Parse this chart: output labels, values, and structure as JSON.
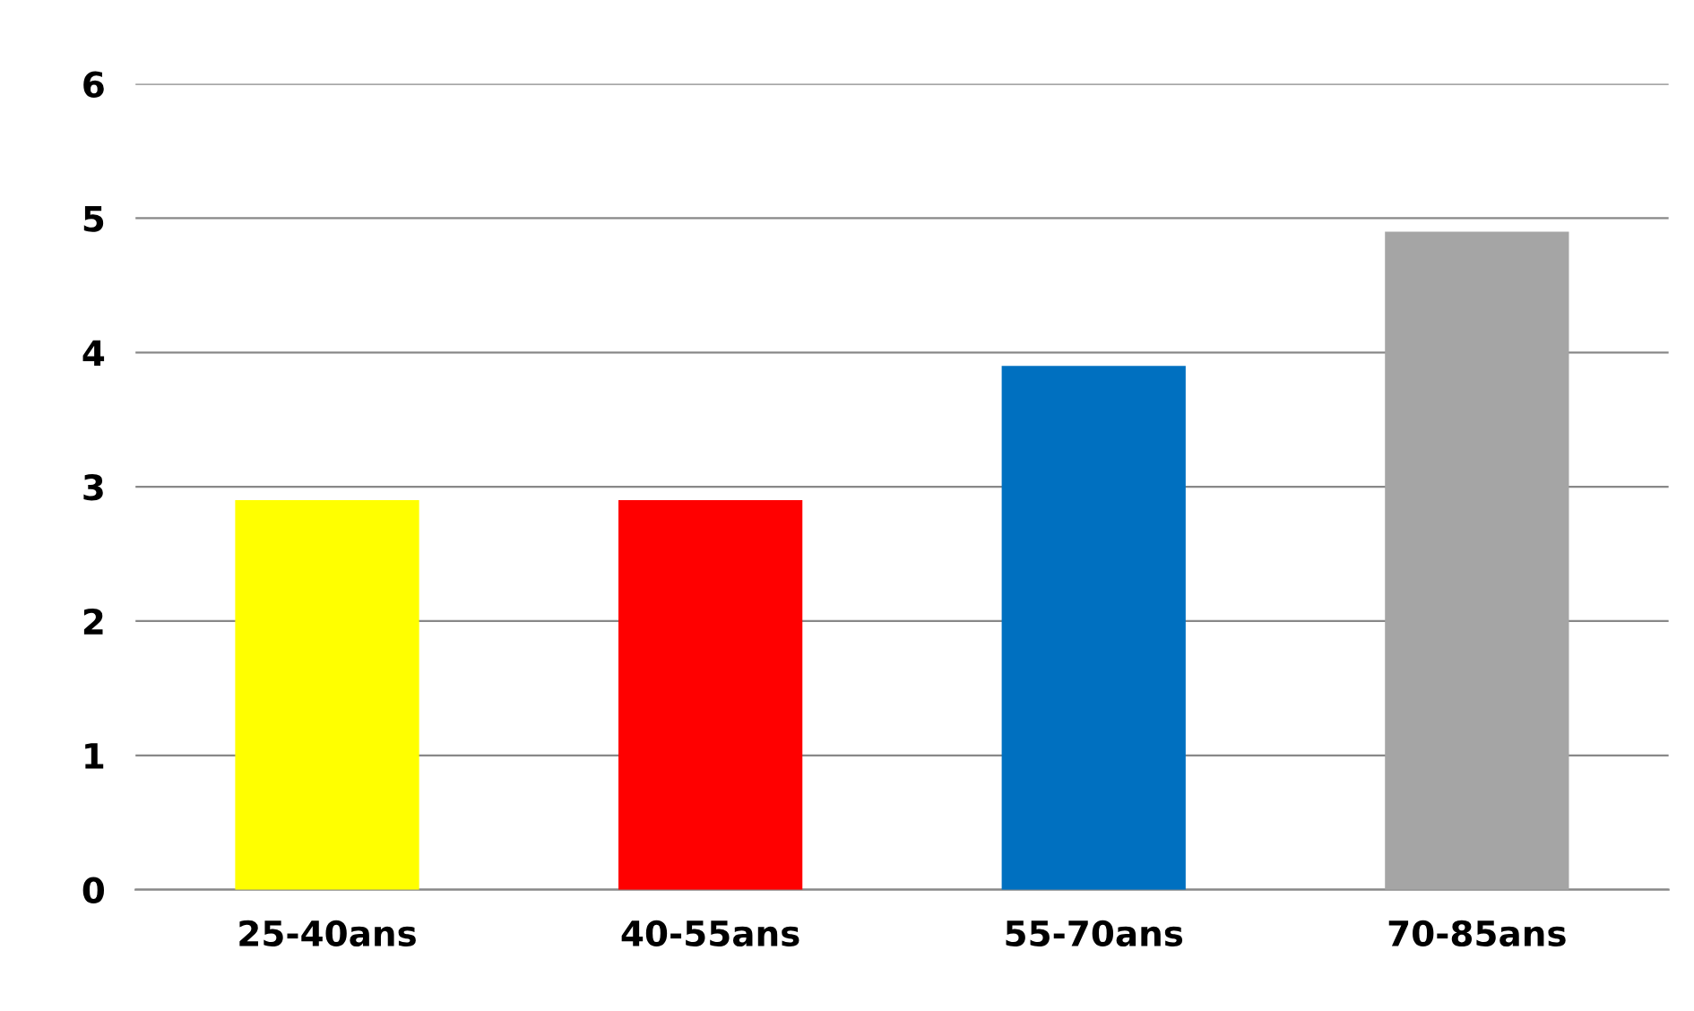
{
  "chart_data": {
    "type": "bar",
    "categories": [
      "25-40ans",
      "40-55ans",
      "55-70ans",
      "70-85ans"
    ],
    "values": [
      2.9,
      2.9,
      3.9,
      4.9
    ],
    "colors": [
      "#ffff00",
      "#ff0000",
      "#0070c0",
      "#a5a5a5"
    ],
    "ylim": [
      0,
      6
    ],
    "yticks": [
      0,
      1,
      2,
      3,
      4,
      5,
      6
    ],
    "grid": "y"
  }
}
